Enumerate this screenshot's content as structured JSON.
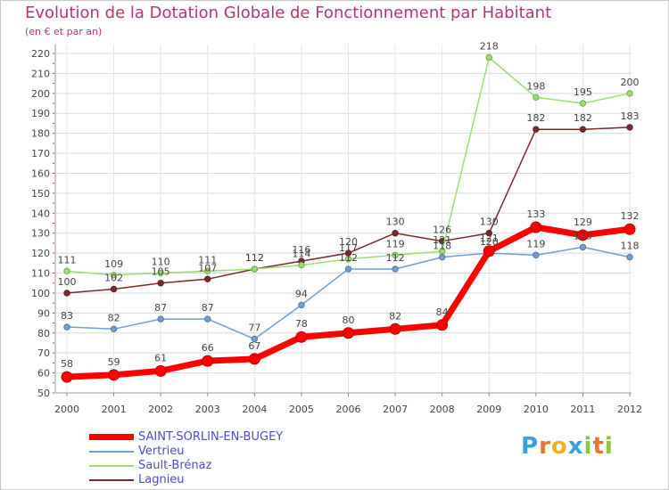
{
  "title": "Evolution de la Dotation Globale de Fonctionnement par Habitant",
  "subtitle": "(en € et par an)",
  "logo": {
    "p": "P",
    "r": "r",
    "o": "o",
    "x": "x",
    "i": "i",
    "t": "t",
    "i2": "i"
  },
  "chart_data": {
    "type": "line",
    "title": "Evolution de la Dotation Globale de Fonctionnement par Habitant",
    "subtitle": "(en € et par an)",
    "xlabel": "",
    "ylabel": "",
    "ylim": [
      50,
      220
    ],
    "yticks": [
      50,
      60,
      70,
      80,
      90,
      100,
      110,
      120,
      130,
      140,
      150,
      160,
      170,
      180,
      190,
      200,
      210,
      220
    ],
    "grid": true,
    "legend_position": "bottom-left",
    "x": [
      "2000",
      "2001",
      "2002",
      "2003",
      "2004",
      "2005",
      "2006",
      "2007",
      "2008",
      "2009",
      "2010",
      "2011",
      "2012"
    ],
    "series": [
      {
        "name": "SAINT-SORLIN-EN-BUGEY",
        "color": "#ff0000",
        "values": [
          58,
          59,
          61,
          66,
          67,
          78,
          80,
          82,
          84,
          121,
          133,
          129,
          132
        ]
      },
      {
        "name": "Vertrieu",
        "color": "#6e9fd1",
        "values": [
          83,
          82,
          87,
          87,
          77,
          94,
          112,
          112,
          118,
          120,
          119,
          123,
          118
        ]
      },
      {
        "name": "Sault-Brénaz",
        "color": "#99e06e",
        "values": [
          111,
          109,
          110,
          111,
          112,
          114,
          117,
          119,
          121,
          218,
          198,
          195,
          200
        ]
      },
      {
        "name": "Lagnieu",
        "color": "#7a2a2a",
        "values": [
          100,
          102,
          105,
          107,
          112,
          116,
          120,
          130,
          126,
          130,
          182,
          182,
          183
        ]
      }
    ],
    "data_labels": {
      "SAINT-SORLIN-EN-BUGEY": [
        "58",
        "59",
        "61",
        "66",
        "67",
        "78",
        "80",
        "82",
        "84",
        "121",
        "133",
        "129",
        "132"
      ],
      "Vertrieu": [
        "83",
        "82",
        "87",
        "87",
        "77",
        "94",
        "112",
        "112",
        "118",
        "120",
        "119",
        "123",
        "118"
      ],
      "Sault-Brénaz": [
        "111",
        "109",
        "110",
        "111",
        "112",
        "114",
        "117",
        "119",
        "121",
        "218",
        "198",
        "195",
        "200"
      ],
      "Lagnieu": [
        "100",
        "102",
        "105",
        "107",
        "112",
        "116",
        "120",
        "130",
        "126",
        "130",
        "182",
        "182",
        "183"
      ]
    }
  }
}
